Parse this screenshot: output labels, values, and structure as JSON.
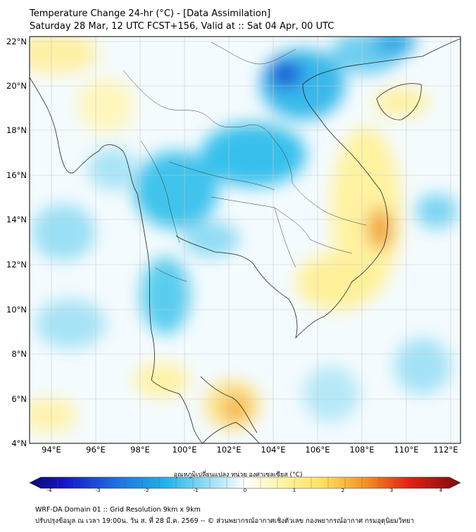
{
  "title_line1": "Temperature Change 24-hr (°C) - [Data Assimilation]",
  "title_line2": "Saturday 28 Mar, 12 UTC FCST+156, Valid at :: Sat 04 Apr, 00 UTC",
  "map": {
    "lat_range": [
      4,
      22.2
    ],
    "lon_range": [
      93,
      112.5
    ],
    "lat_labels": [
      "22°N",
      "20°N",
      "18°N",
      "16°N",
      "14°N",
      "12°N",
      "10°N",
      "8°N",
      "6°N",
      "4°N"
    ],
    "lon_labels": [
      "94°E",
      "96°E",
      "98°E",
      "100°E",
      "102°E",
      "104°E",
      "106°E",
      "108°E",
      "110°E",
      "112°E"
    ],
    "field": "24-hr temperature change",
    "notable_regions": [
      {
        "name": "cool-center-north-vietnam-laos",
        "value": -3
      },
      {
        "name": "warm-center-central-vietnam-coast",
        "value": 2
      },
      {
        "name": "warm-center-malay-peninsula",
        "value": 1.7
      }
    ]
  },
  "colorbar": {
    "title": "อุณหภูมิเปลี่ยนแปลง หน่วย องศาเซลเซียส (°C)",
    "ticks": [
      "-4",
      "-3",
      "-2",
      "-1",
      "0",
      "1",
      "2",
      "3",
      "4"
    ],
    "range": [
      -4,
      4
    ]
  },
  "footer": {
    "line1": "WRF-DA Domain 01 :: Grid Resolution 9km x 9km",
    "line2": "ปรับปรุงข้อมูล ณ เวลา 19:00น. วัน ส. ที่ 28 มี.ค. 2569 -- © ส่วนพยากรณ์อากาศเชิงตัวเลข กองพยากรณ์อากาศ กรมอุตุนิยมวิทยา"
  },
  "colors": {
    "cool": "#22b5e8",
    "neutral": "#ffffff",
    "warm": "#ffe060",
    "hot": "#f39222"
  }
}
